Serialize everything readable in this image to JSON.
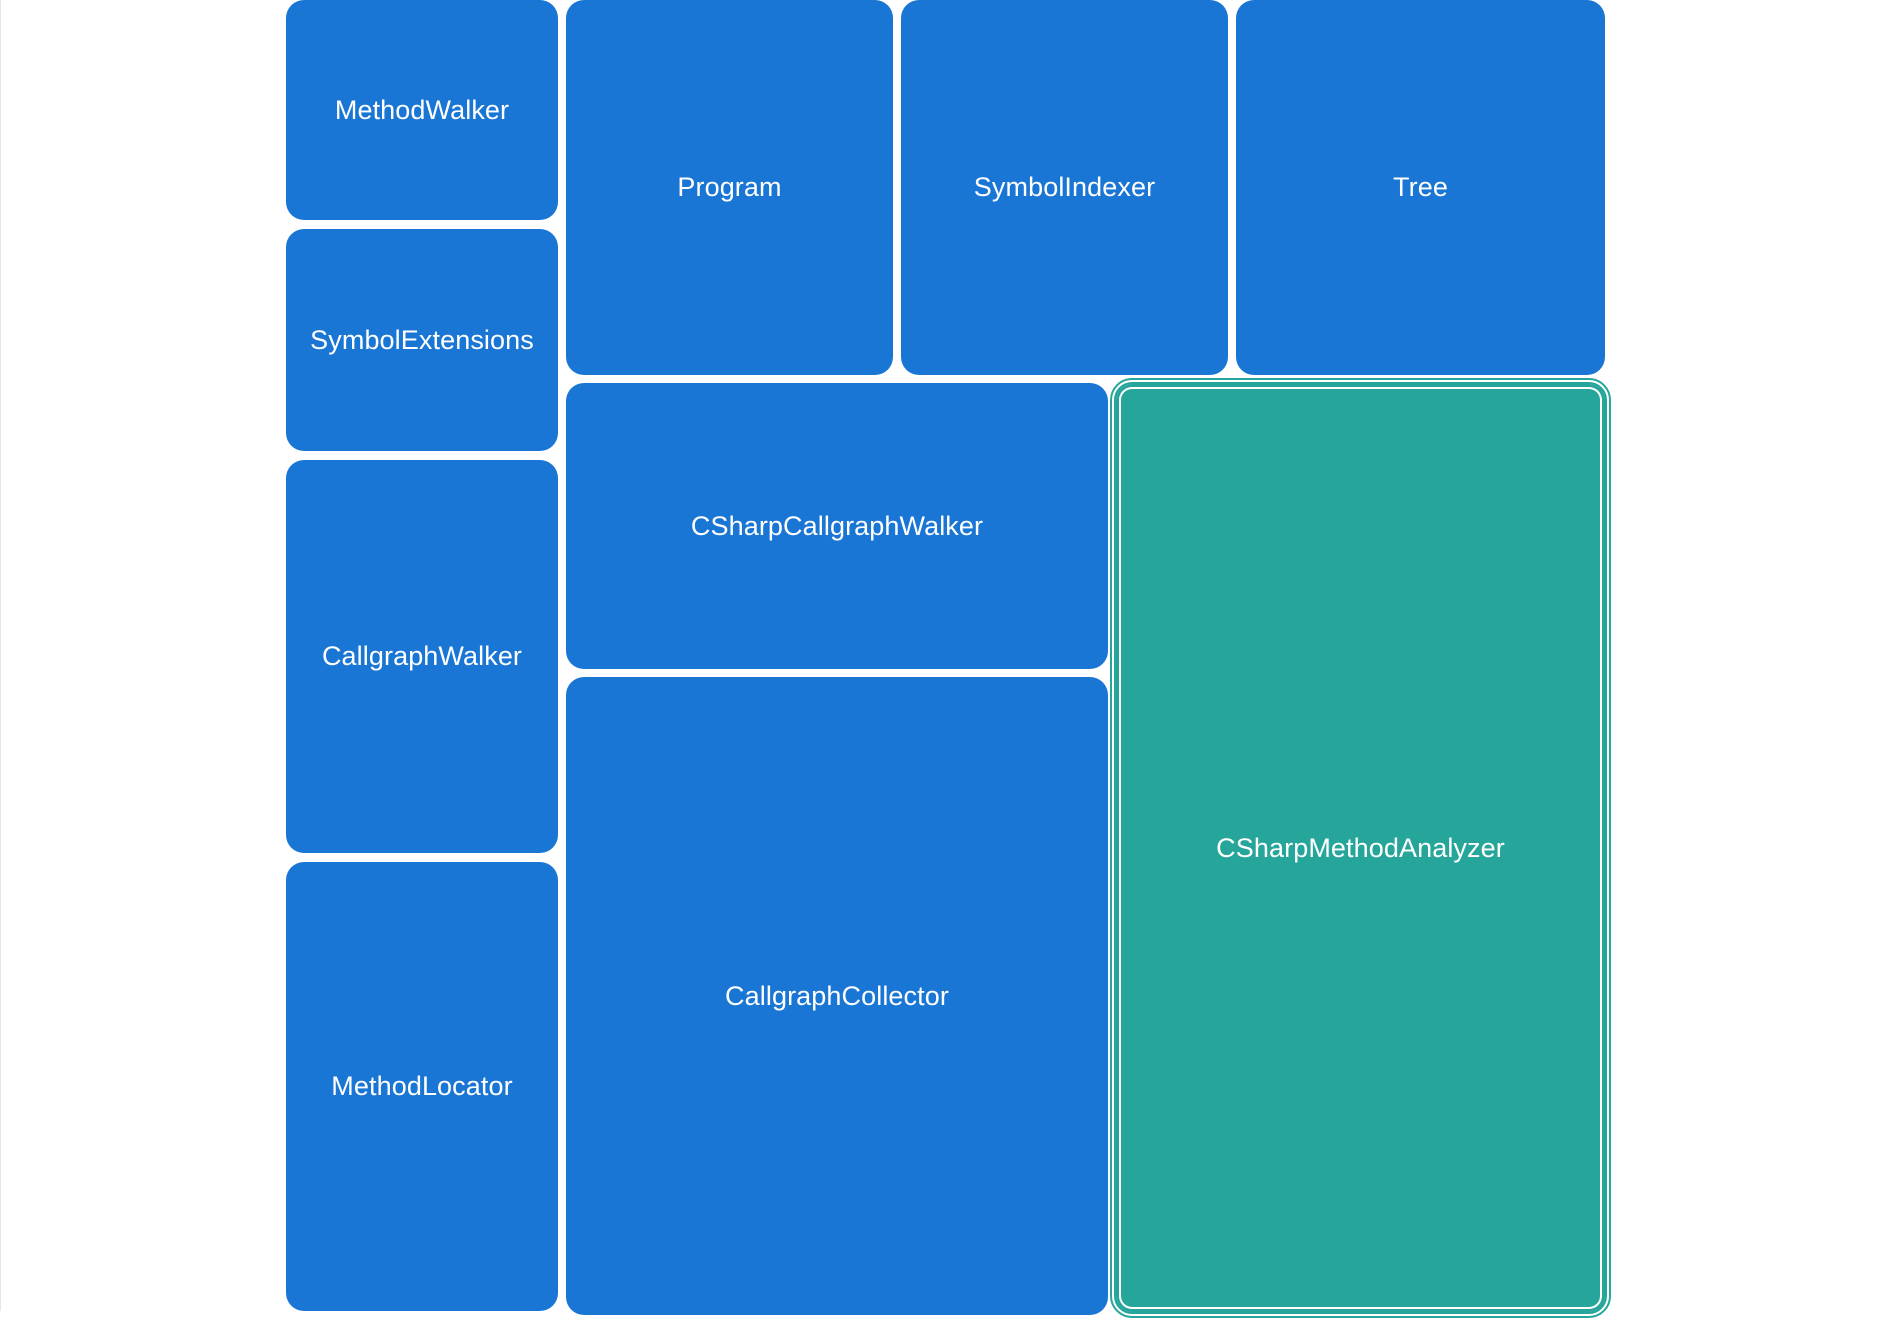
{
  "treemap": {
    "items": [
      {
        "id": "method-walker",
        "label": "MethodWalker",
        "selected": false
      },
      {
        "id": "symbol-extensions",
        "label": "SymbolExtensions",
        "selected": false
      },
      {
        "id": "callgraph-walker",
        "label": "CallgraphWalker",
        "selected": false
      },
      {
        "id": "method-locator",
        "label": "MethodLocator",
        "selected": false
      },
      {
        "id": "program",
        "label": "Program",
        "selected": false
      },
      {
        "id": "symbol-indexer",
        "label": "SymbolIndexer",
        "selected": false
      },
      {
        "id": "tree",
        "label": "Tree",
        "selected": false
      },
      {
        "id": "csharp-callgraph-walker",
        "label": "CSharpCallgraphWalker",
        "selected": false
      },
      {
        "id": "callgraph-collector",
        "label": "CallgraphCollector",
        "selected": false
      },
      {
        "id": "csharp-method-analyzer",
        "label": "CSharpMethodAnalyzer",
        "selected": true
      }
    ]
  },
  "colors": {
    "tile": "#1a76d4",
    "selected_tile": "#26a69a",
    "label": "#ffffff",
    "background": "#ffffff"
  }
}
